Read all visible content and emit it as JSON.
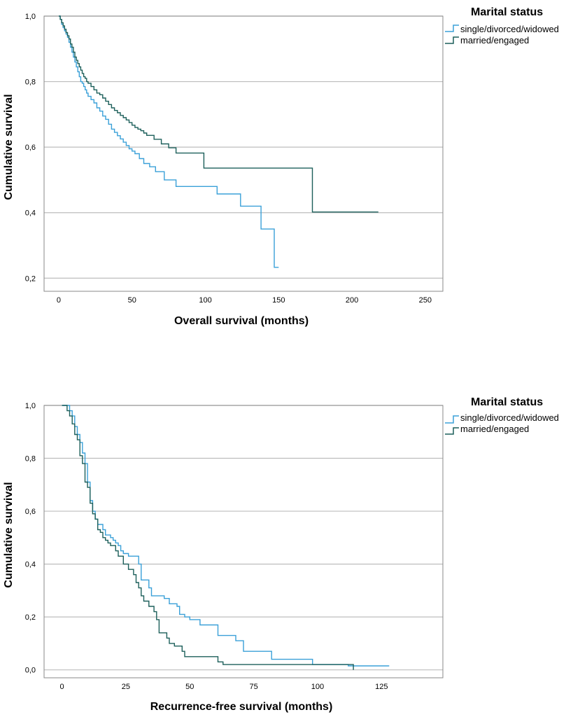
{
  "chart_data": [
    {
      "type": "line",
      "subtype": "kaplan-meier step",
      "xlabel": "Overall survival (months)",
      "ylabel": "Cumulative survival",
      "xlim": [
        -10,
        262
      ],
      "ylim": [
        0.16,
        1.0
      ],
      "xticks": [
        0,
        50,
        100,
        150,
        200,
        250
      ],
      "yticks": [
        0.2,
        0.4,
        0.6,
        0.8,
        1.0
      ],
      "ytick_labels": [
        "0,2",
        "0,4",
        "0,6",
        "0,8",
        "1,0"
      ],
      "xtick_labels": [
        "0",
        "50",
        "100",
        "150",
        "200",
        "250"
      ],
      "grid": "horizontal",
      "legend": {
        "title": "Marital status",
        "position": "top-right",
        "entries": [
          "single/divorced/widowed",
          "married/engaged"
        ]
      },
      "series": [
        {
          "name": "single/divorced/widowed",
          "color": "#3aa0d8",
          "x": [
            0,
            1,
            2,
            3,
            4,
            5,
            6,
            7,
            8,
            9,
            10,
            11,
            12,
            13,
            14,
            15,
            16,
            17,
            18,
            19,
            20,
            22,
            24,
            26,
            28,
            30,
            32,
            34,
            36,
            38,
            40,
            42,
            44,
            46,
            48,
            50,
            52,
            55,
            58,
            62,
            66,
            72,
            80,
            95,
            108,
            124,
            138,
            147,
            150
          ],
          "y": [
            1.0,
            0.99,
            0.975,
            0.965,
            0.955,
            0.945,
            0.935,
            0.92,
            0.905,
            0.89,
            0.875,
            0.86,
            0.845,
            0.83,
            0.815,
            0.8,
            0.795,
            0.785,
            0.775,
            0.765,
            0.755,
            0.745,
            0.735,
            0.72,
            0.71,
            0.695,
            0.685,
            0.67,
            0.655,
            0.645,
            0.635,
            0.625,
            0.615,
            0.605,
            0.595,
            0.588,
            0.58,
            0.565,
            0.55,
            0.54,
            0.525,
            0.5,
            0.48,
            0.48,
            0.457,
            0.42,
            0.35,
            0.233,
            0.233
          ]
        },
        {
          "name": "married/engaged",
          "color": "#1c5f5a",
          "x": [
            0,
            1,
            2,
            3,
            4,
            5,
            6,
            7,
            8,
            9,
            10,
            11,
            12,
            13,
            14,
            15,
            16,
            17,
            18,
            19,
            20,
            22,
            24,
            26,
            28,
            30,
            32,
            34,
            36,
            38,
            40,
            42,
            44,
            46,
            48,
            50,
            52,
            54,
            56,
            58,
            60,
            65,
            70,
            75,
            80,
            99,
            173,
            218
          ],
          "y": [
            1.0,
            0.99,
            0.98,
            0.97,
            0.96,
            0.95,
            0.94,
            0.93,
            0.915,
            0.905,
            0.89,
            0.875,
            0.865,
            0.855,
            0.845,
            0.835,
            0.825,
            0.815,
            0.81,
            0.8,
            0.795,
            0.785,
            0.775,
            0.765,
            0.76,
            0.75,
            0.74,
            0.73,
            0.72,
            0.712,
            0.705,
            0.697,
            0.69,
            0.683,
            0.675,
            0.667,
            0.66,
            0.655,
            0.65,
            0.643,
            0.636,
            0.624,
            0.61,
            0.598,
            0.582,
            0.536,
            0.402,
            0.402
          ]
        }
      ]
    },
    {
      "type": "line",
      "subtype": "kaplan-meier step",
      "xlabel": "Recurrence-free survival (months)",
      "ylabel": "Cumulative survival",
      "xlim": [
        -7,
        149
      ],
      "ylim": [
        -0.03,
        1.0
      ],
      "xticks": [
        0,
        25,
        50,
        75,
        100,
        125
      ],
      "yticks": [
        0.0,
        0.2,
        0.4,
        0.6,
        0.8,
        1.0
      ],
      "ytick_labels": [
        "0,0",
        "0,2",
        "0,4",
        "0,6",
        "0,8",
        "1,0"
      ],
      "xtick_labels": [
        "0",
        "25",
        "50",
        "75",
        "100",
        "125"
      ],
      "grid": "horizontal",
      "legend": {
        "title": "Marital status",
        "position": "top-right",
        "entries": [
          "single/divorced/widowed",
          "married/engaged"
        ]
      },
      "series": [
        {
          "name": "single/divorced/widowed",
          "color": "#3aa0d8",
          "x": [
            0,
            3,
            4,
            5,
            6,
            7,
            8,
            9,
            10,
            11,
            12,
            13,
            14,
            15,
            16,
            17,
            19,
            20,
            21,
            22,
            23,
            24,
            25,
            26,
            27,
            28,
            30,
            31,
            32,
            34,
            35,
            38,
            40,
            42,
            45,
            46,
            48,
            50,
            54,
            61,
            68,
            71,
            82,
            84,
            98,
            112,
            128
          ],
          "y": [
            1.0,
            0.98,
            0.96,
            0.92,
            0.89,
            0.86,
            0.82,
            0.78,
            0.71,
            0.64,
            0.6,
            0.57,
            0.55,
            0.55,
            0.53,
            0.51,
            0.5,
            0.49,
            0.48,
            0.47,
            0.45,
            0.44,
            0.44,
            0.43,
            0.43,
            0.43,
            0.4,
            0.34,
            0.34,
            0.31,
            0.28,
            0.28,
            0.27,
            0.25,
            0.24,
            0.21,
            0.2,
            0.19,
            0.17,
            0.13,
            0.11,
            0.07,
            0.04,
            0.04,
            0.02,
            0.015,
            0.015
          ]
        },
        {
          "name": "married/engaged",
          "color": "#1c5f5a",
          "x": [
            0,
            2,
            3,
            4,
            5,
            6,
            7,
            8,
            9,
            10,
            11,
            12,
            13,
            14,
            15,
            16,
            17,
            18,
            19,
            21,
            22,
            24,
            26,
            28,
            29,
            30,
            31,
            32,
            34,
            36,
            37,
            38,
            40,
            41,
            42,
            44,
            47,
            48,
            51,
            61,
            63,
            100,
            114
          ],
          "y": [
            1.0,
            0.98,
            0.96,
            0.93,
            0.89,
            0.87,
            0.81,
            0.78,
            0.71,
            0.69,
            0.63,
            0.59,
            0.57,
            0.53,
            0.52,
            0.5,
            0.49,
            0.48,
            0.47,
            0.45,
            0.43,
            0.4,
            0.38,
            0.36,
            0.33,
            0.31,
            0.28,
            0.26,
            0.24,
            0.22,
            0.19,
            0.14,
            0.14,
            0.12,
            0.1,
            0.09,
            0.07,
            0.05,
            0.05,
            0.03,
            0.02,
            0.02,
            0.0
          ]
        }
      ]
    }
  ]
}
